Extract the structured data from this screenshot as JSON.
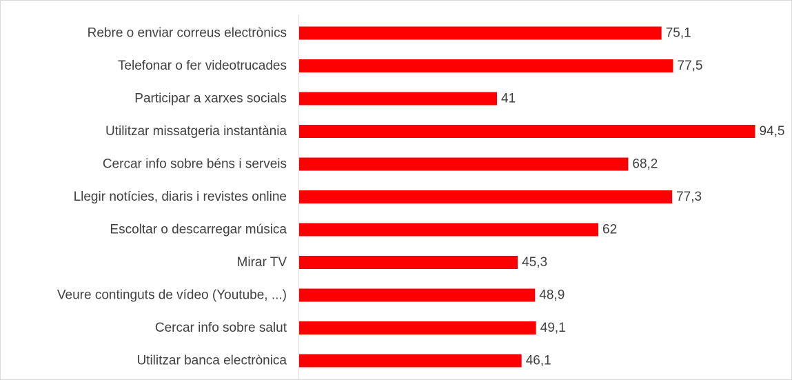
{
  "chart_data": {
    "type": "bar",
    "orientation": "horizontal",
    "categories": [
      "Rebre o enviar correus electrònics",
      "Telefonar o fer videotrucades",
      "Participar a xarxes socials",
      "Utilitzar missatgeria instantània",
      "Cercar info sobre béns i serveis",
      "Llegir notícies, diaris i revistes online",
      "Escoltar o descarregar música",
      "Mirar TV",
      "Veure continguts de vídeo (Youtube, ...)",
      "Cercar info sobre salut",
      "Utilitzar banca electrònica"
    ],
    "values": [
      75.1,
      77.5,
      41,
      94.5,
      68.2,
      77.3,
      62,
      45.3,
      48.9,
      49.1,
      46.1
    ],
    "value_labels": [
      "75,1",
      "77,5",
      "41",
      "94,5",
      "68,2",
      "77,3",
      "62",
      "45,3",
      "48,9",
      "49,1",
      "46,1"
    ],
    "xlim": [
      0,
      100
    ],
    "grid": false,
    "legend": "none",
    "title": "",
    "xlabel": "",
    "ylabel": "",
    "bar_color": "#ff0000",
    "axis_color": "#d9d9d9",
    "text_color": "#404040"
  }
}
